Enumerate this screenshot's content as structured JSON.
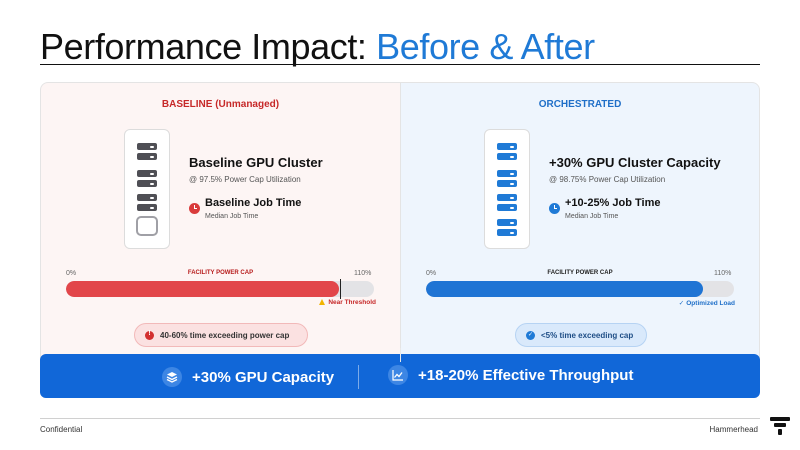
{
  "title": {
    "main": "Performance Impact:",
    "accent": "Before & After"
  },
  "baseline": {
    "title": "BASELINE (Unmanaged)",
    "cluster_title": "Baseline GPU Cluster",
    "cluster_sub": "@ 97.5% Power Cap Utilization",
    "job_title": "Baseline Job Time",
    "job_sub": "Median Job Time",
    "bar": {
      "min_label": "0%",
      "max_label": "110%",
      "cap_label": "FACILITY POWER CAP",
      "fill_percent": 97.5,
      "note": "Near Threshold"
    },
    "pill": "40-60% time exceeding power cap"
  },
  "orchestrated": {
    "title": "ORCHESTRATED",
    "cluster_title": "+30% GPU Cluster Capacity",
    "cluster_sub": "@ 98.75% Power Cap Utilization",
    "job_title": "+10-25% Job Time",
    "job_sub": "Median Job Time",
    "bar": {
      "min_label": "0%",
      "max_label": "110%",
      "cap_label": "FACILITY POWER CAP",
      "fill_percent": 98.75,
      "note": "Optimized Load"
    },
    "pill": "<5% time exceeding cap"
  },
  "banner": {
    "stat1": {
      "icon": "layers-icon",
      "text": "+30% GPU Capacity"
    },
    "stat2": {
      "icon": "chart-line-icon",
      "text": "+18-20% Effective Throughput"
    }
  },
  "footer": {
    "left": "Confidential",
    "right": "Hammerhead"
  },
  "colors": {
    "accent_blue": "#1f7ad6",
    "baseline_red": "#e2464a",
    "banner_blue": "#1167d8"
  }
}
